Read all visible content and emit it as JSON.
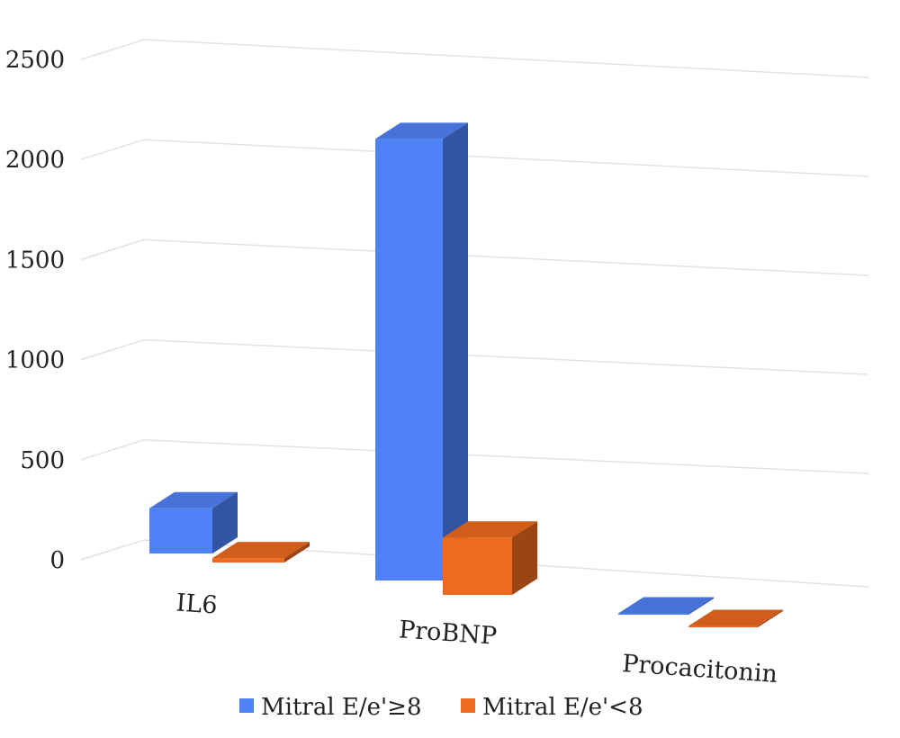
{
  "chart_data": {
    "type": "bar",
    "style": "3d-perspective",
    "categories": [
      "IL6",
      "ProBNP",
      "Procacitonin"
    ],
    "series": [
      {
        "name": "Mitral E/e'≥8",
        "values": [
          205,
          2000,
          0.5
        ],
        "color": "#4f81f7"
      },
      {
        "name": "Mitral E/e'<8",
        "values": [
          20,
          260,
          0.2
        ],
        "color": "#ee6a1f"
      }
    ],
    "yticks": [
      0,
      500,
      1000,
      1500,
      2000,
      2500
    ],
    "ylim": [
      0,
      2500
    ],
    "grid": true,
    "legend_position": "bottom"
  }
}
